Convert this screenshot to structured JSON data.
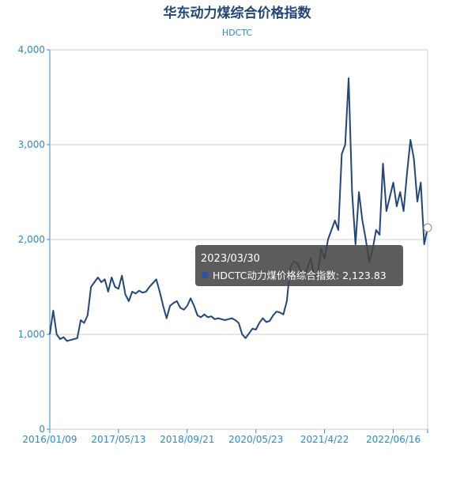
{
  "chart_data": {
    "type": "line",
    "title": "华东动力煤综合价格指数",
    "subtitle": "HDCTC",
    "categories": [
      "2016/01/09",
      null,
      null,
      null,
      null,
      null,
      null,
      null,
      null,
      null,
      null,
      null,
      null,
      null,
      null,
      null,
      null,
      null,
      null,
      null,
      "2017/05/13",
      null,
      null,
      null,
      null,
      null,
      null,
      null,
      null,
      null,
      null,
      null,
      null,
      null,
      null,
      null,
      null,
      null,
      null,
      null,
      "2018/09/21",
      null,
      null,
      null,
      null,
      null,
      null,
      null,
      null,
      null,
      null,
      null,
      null,
      null,
      null,
      null,
      null,
      null,
      null,
      null,
      "2020/05/23",
      null,
      null,
      null,
      null,
      null,
      null,
      null,
      null,
      null,
      null,
      null,
      null,
      null,
      null,
      null,
      null,
      null,
      null,
      null,
      "2021/4/22",
      null,
      null,
      null,
      null,
      null,
      null,
      null,
      null,
      null,
      null,
      null,
      null,
      null,
      null,
      null,
      null,
      null,
      null,
      null,
      "2022/06/16",
      null,
      null,
      null,
      null,
      null,
      null,
      null,
      null,
      null,
      null
    ],
    "values": [
      1000,
      1250,
      1000,
      950,
      970,
      930,
      940,
      950,
      960,
      1150,
      1120,
      1200,
      1500,
      1550,
      1600,
      1550,
      1580,
      1450,
      1600,
      1500,
      1480,
      1620,
      1420,
      1350,
      1450,
      1430,
      1460,
      1440,
      1450,
      1500,
      1540,
      1580,
      1450,
      1300,
      1170,
      1300,
      1330,
      1350,
      1280,
      1260,
      1300,
      1380,
      1300,
      1200,
      1180,
      1210,
      1180,
      1190,
      1160,
      1170,
      1160,
      1150,
      1160,
      1170,
      1150,
      1120,
      1000,
      960,
      1010,
      1060,
      1050,
      1120,
      1170,
      1130,
      1140,
      1200,
      1240,
      1230,
      1210,
      1350,
      1700,
      1770,
      1750,
      1680,
      1600,
      1700,
      1800,
      1600,
      1650,
      1900,
      1800,
      2000,
      2100,
      2200,
      2100,
      2900,
      3000,
      3700,
      2500,
      1950,
      2500,
      2200,
      2000,
      1760,
      1900,
      2100,
      2050,
      2800,
      2300,
      2450,
      2600,
      2350,
      2500,
      2300,
      2700,
      3050,
      2850,
      2400,
      2600,
      1950,
      2123.83
    ],
    "color": "#23467a",
    "ylim": [
      0,
      4000
    ],
    "yticks": [
      0,
      {
        "value": 1000,
        "label": "1,000"
      },
      {
        "value": 2000,
        "label": "2,000"
      },
      {
        "value": 3000,
        "label": "3,000"
      },
      {
        "value": 4000,
        "label": "4,000"
      }
    ],
    "grid": true,
    "tooltip": {
      "title": "2023/03/30",
      "text": "HDCTC动力煤价格综合指数: 2,123.83"
    }
  }
}
